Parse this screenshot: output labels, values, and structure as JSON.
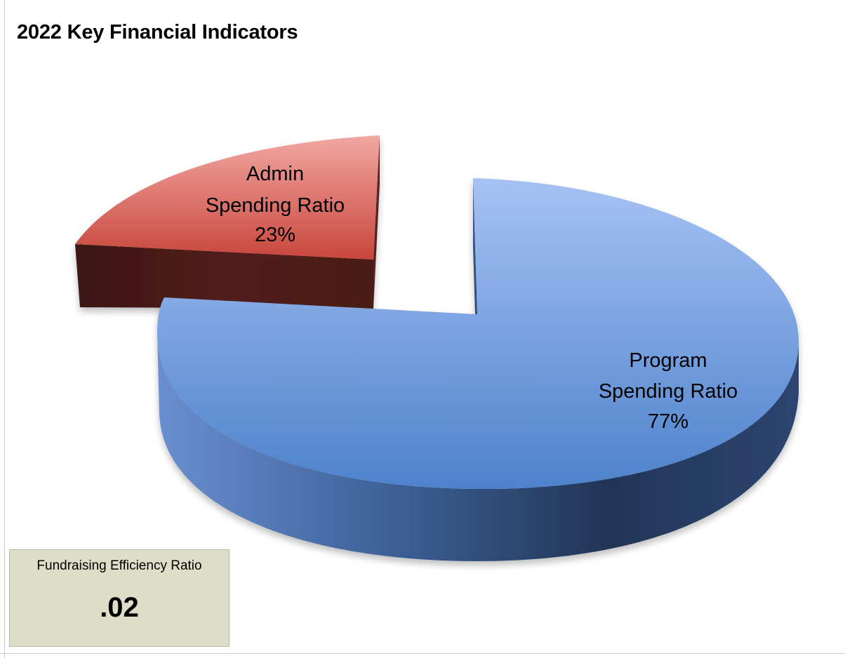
{
  "chart_data": {
    "type": "pie",
    "title": "2022 Key Financial Indicators",
    "slices": [
      {
        "label_lines": [
          "Program",
          "Spending Ratio",
          "77%"
        ],
        "value": 77,
        "color": "#8fb0e8"
      },
      {
        "label_lines": [
          "Admin",
          "Spending Ratio",
          "23%"
        ],
        "value": 23,
        "color": "#d9736c"
      }
    ],
    "style": "3d-exploded"
  },
  "kpi": {
    "label": "Fundraising Efficiency Ratio",
    "value": ".02"
  }
}
